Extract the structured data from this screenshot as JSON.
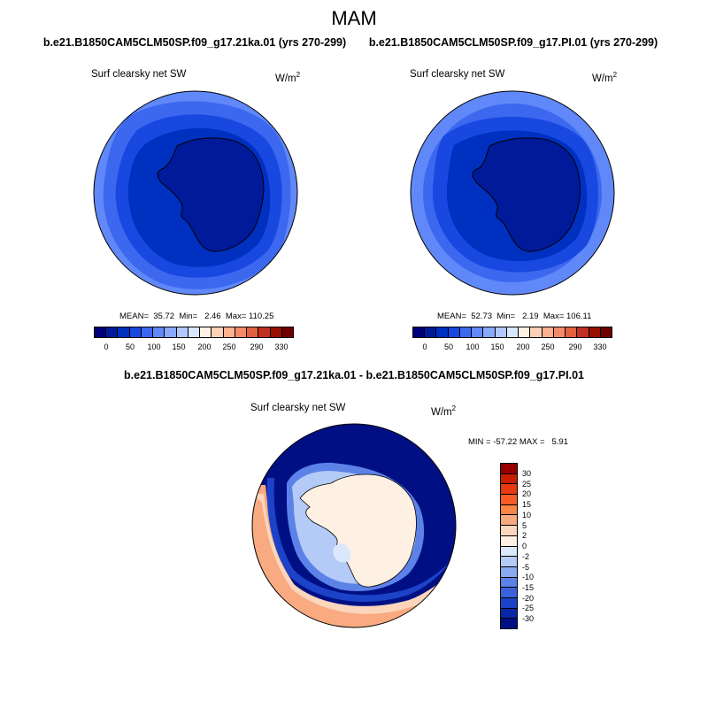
{
  "title": "MAM",
  "panel1": {
    "case": "b.e21.B1850CAM5CLM50SP.f09_g17.21ka.01 (yrs 270-299)",
    "variable": "Surf clearsky net SW",
    "units": "W/m",
    "units_exp": "2",
    "stats": "MEAN=  35.72  Min=   2.46  Max= 110.25"
  },
  "panel2": {
    "case": "b.e21.B1850CAM5CLM50SP.f09_g17.PI.01 (yrs 270-299)",
    "variable": "Surf clearsky net SW",
    "units": "W/m",
    "units_exp": "2",
    "stats": "MEAN=  52.73  Min=   2.19  Max= 106.11"
  },
  "diff": {
    "title": "b.e21.B1850CAM5CLM50SP.f09_g17.21ka.01 - b.e21.B1850CAM5CLM50SP.f09_g17.PI.01",
    "variable": "Surf clearsky net SW",
    "units": "W/m",
    "units_exp": "2",
    "minmax": "MIN = -57.22 MAX =   5.91"
  },
  "abs_colorbar": {
    "colors": [
      "#00007a",
      "#001a9a",
      "#0030c0",
      "#1848e0",
      "#3c68f0",
      "#6088f8",
      "#88a8fc",
      "#b0c8fe",
      "#d8e6ff",
      "#fff0e6",
      "#ffd0b8",
      "#ffb090",
      "#f58a68",
      "#e06040",
      "#c03020",
      "#981000",
      "#700000"
    ],
    "ticks": [
      "0",
      "50",
      "100",
      "150",
      "200",
      "250",
      "290",
      "330"
    ]
  },
  "diff_colorbar": {
    "colors": [
      "#980000",
      "#c81e00",
      "#e83810",
      "#fa5c26",
      "#fb8448",
      "#f9aa80",
      "#fbd6bc",
      "#fff0e4",
      "#dbe8fc",
      "#b4cbf8",
      "#8aaaf0",
      "#5c82e8",
      "#3a62dc",
      "#1c42c8",
      "#0a26a8",
      "#001084"
    ],
    "ticks": [
      "30",
      "25",
      "20",
      "15",
      "10",
      "5",
      "2",
      "0",
      "-2",
      "-5",
      "-10",
      "-15",
      "-20",
      "-25",
      "-30"
    ]
  }
}
